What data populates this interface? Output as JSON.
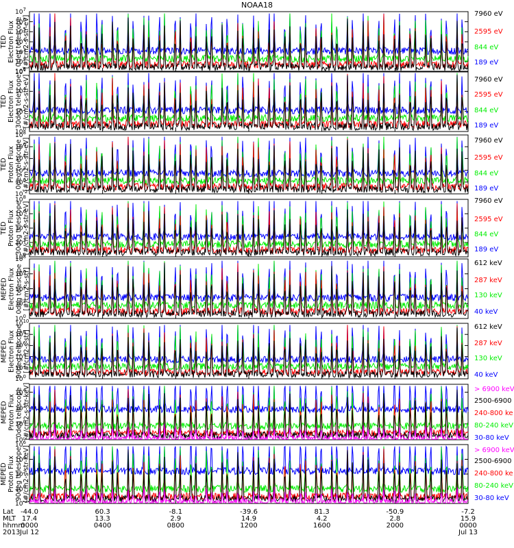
{
  "title": "NOAA18",
  "colors": {
    "blue": "#0000ff",
    "red": "#ff0000",
    "green": "#00ee00",
    "black": "#000000",
    "magenta": "#ff00ff"
  },
  "chart_data": [
    {
      "type": "line",
      "ylabel": [
        "TED",
        "Electron Flux",
        "0deg telescope",
        "[#/cm2-s-str-eV]"
      ],
      "ytick_exponents": [
        1,
        2,
        3,
        4,
        5,
        6,
        7
      ],
      "yscale": "log",
      "ylim": [
        10,
        10000000
      ],
      "series": [
        {
          "name": "7960 eV",
          "color": "#000000"
        },
        {
          "name": "2595 eV",
          "color": "#ff0000"
        },
        {
          "name": "844 eV",
          "color": "#00ee00"
        },
        {
          "name": "189 eV",
          "color": "#0000ff"
        }
      ]
    },
    {
      "type": "line",
      "ylabel": [
        "TED",
        "Electron Flux",
        "30deg telescope",
        "[#/cm2-s-str-eV]"
      ],
      "ytick_exponents": [
        0,
        2,
        4,
        6
      ],
      "yscale": "log",
      "ylim": [
        1,
        1000000
      ],
      "series": [
        {
          "name": "7960 eV",
          "color": "#000000"
        },
        {
          "name": "2595 eV",
          "color": "#ff0000"
        },
        {
          "name": "844 eV",
          "color": "#00ee00"
        },
        {
          "name": "189 eV",
          "color": "#0000ff"
        }
      ]
    },
    {
      "type": "line",
      "ylabel": [
        "TED",
        "Proton Flux",
        "0deg telescope",
        "[#/cm2-s-str-eV]"
      ],
      "ytick_exponents": [
        -2,
        0,
        2,
        4,
        6,
        8
      ],
      "yscale": "log",
      "ylim": [
        0.01,
        100000000
      ],
      "series": [
        {
          "name": "7960 eV",
          "color": "#000000"
        },
        {
          "name": "2595 eV",
          "color": "#ff0000"
        },
        {
          "name": "844 eV",
          "color": "#00ee00"
        },
        {
          "name": "189 eV",
          "color": "#0000ff"
        }
      ]
    },
    {
      "type": "line",
      "ylabel": [
        "TED",
        "Proton Flux",
        "30deg telescope",
        "[#/cm2-s-str-eV]"
      ],
      "ytick_exponents": [
        0,
        2,
        4,
        6,
        8
      ],
      "yscale": "log",
      "ylim": [
        1,
        100000000
      ],
      "series": [
        {
          "name": "7960 eV",
          "color": "#000000"
        },
        {
          "name": "2595 eV",
          "color": "#ff0000"
        },
        {
          "name": "844 eV",
          "color": "#00ee00"
        },
        {
          "name": "189 eV",
          "color": "#0000ff"
        }
      ]
    },
    {
      "type": "line",
      "ylabel": [
        "MEPED",
        "Electron Flux",
        "0deg telescope",
        "[#/cm2-s-str]"
      ],
      "ytick_exponents": [
        0,
        2,
        4,
        6,
        8
      ],
      "yscale": "log",
      "ylim": [
        1,
        100000000
      ],
      "series": [
        {
          "name": "612 keV",
          "color": "#000000"
        },
        {
          "name": "287 keV",
          "color": "#ff0000"
        },
        {
          "name": "130 keV",
          "color": "#00ee00"
        },
        {
          "name": "40 keV",
          "color": "#0000ff"
        }
      ]
    },
    {
      "type": "line",
      "ylabel": [
        "MEPED",
        "Electron Flux",
        "90deg telescope",
        "[#/cm2-s-str]"
      ],
      "ytick_exponents": [
        0,
        2,
        4,
        6,
        8,
        10
      ],
      "yscale": "log",
      "ylim": [
        1,
        10000000000
      ],
      "series": [
        {
          "name": "612 keV",
          "color": "#000000"
        },
        {
          "name": "287 keV",
          "color": "#ff0000"
        },
        {
          "name": "130 keV",
          "color": "#00ee00"
        },
        {
          "name": "40 keV",
          "color": "#0000ff"
        }
      ]
    },
    {
      "type": "line",
      "ylabel": [
        "MEPED",
        "Proton Flux",
        "0deg telescope",
        "[#/cm2-s-str-keV]"
      ],
      "ytick_exponents": [
        -2,
        0,
        2,
        4
      ],
      "yscale": "log",
      "ylim": [
        0.01,
        100000
      ],
      "series": [
        {
          "name": "> 6900 keV",
          "color": "#ff00ff"
        },
        {
          "name": "2500-6900",
          "color": "#000000"
        },
        {
          "name": "240-800 ke",
          "color": "#ff0000"
        },
        {
          "name": "80-240 keV",
          "color": "#00ee00"
        },
        {
          "name": "30-80 keV",
          "color": "#0000ff"
        }
      ]
    },
    {
      "type": "line",
      "ylabel": [
        "MEPED",
        "Proton Flux",
        "90deg telescope",
        "[#/cm2-s-str-keV]"
      ],
      "ytick_exponents": [
        -2,
        0,
        2,
        4,
        6
      ],
      "yscale": "log",
      "ylim": [
        0.01,
        1000000
      ],
      "series": [
        {
          "name": "> 6900 keV",
          "color": "#ff00ff"
        },
        {
          "name": "2500-6900",
          "color": "#000000"
        },
        {
          "name": "240-800 ke",
          "color": "#ff0000"
        },
        {
          "name": "80-240 keV",
          "color": "#00ee00"
        },
        {
          "name": "30-80 keV",
          "color": "#0000ff"
        }
      ]
    }
  ],
  "x_axis": {
    "row_labels": [
      "Lat",
      "MLT",
      "hhmm",
      "2013"
    ],
    "ticks": [
      {
        "lat": "-44.0",
        "mlt": "17.4",
        "hhmm": "0000",
        "date": "Jul 12"
      },
      {
        "lat": "60.3",
        "mlt": "13.3",
        "hhmm": "0400",
        "date": ""
      },
      {
        "lat": "-8.1",
        "mlt": "2.9",
        "hhmm": "0800",
        "date": ""
      },
      {
        "lat": "-39.6",
        "mlt": "14.9",
        "hhmm": "1200",
        "date": ""
      },
      {
        "lat": "81.3",
        "mlt": "4.2",
        "hhmm": "1600",
        "date": ""
      },
      {
        "lat": "-50.9",
        "mlt": "2.8",
        "hhmm": "2000",
        "date": ""
      },
      {
        "lat": "-7.2",
        "mlt": "15.9",
        "hhmm": "0000",
        "date": "Jul 13"
      }
    ]
  }
}
